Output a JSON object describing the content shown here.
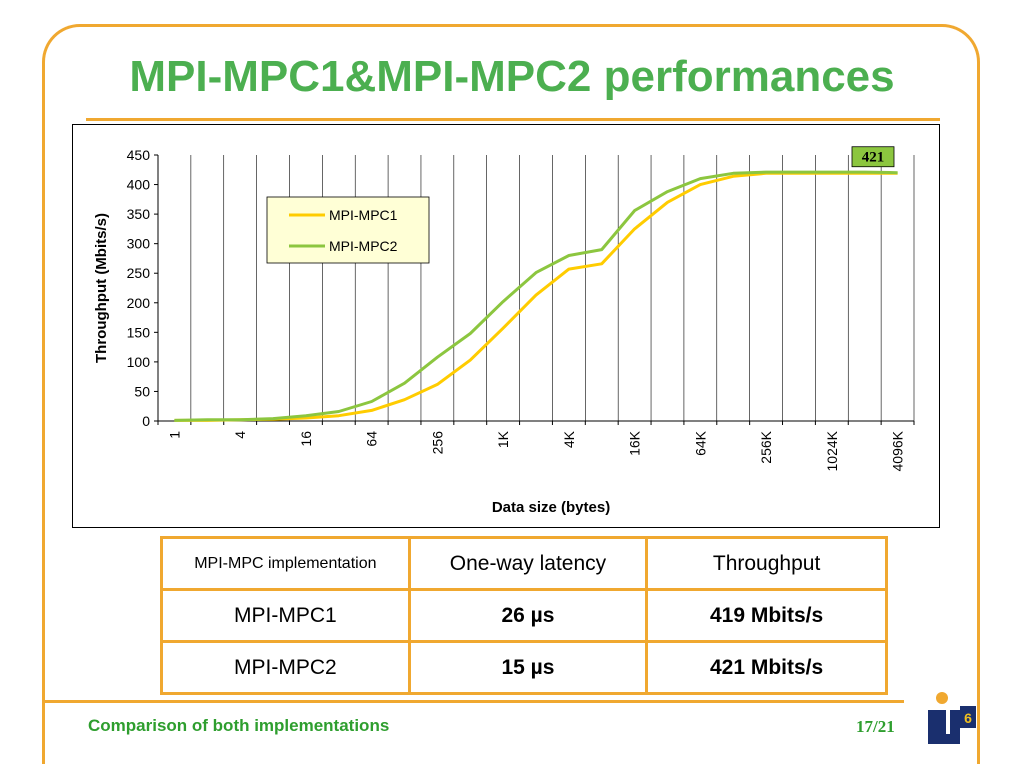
{
  "slide": {
    "title": "MPI-MPC1&MPI-MPC2 performances",
    "footer": "Comparison of both implementations",
    "page": "17/21",
    "logo_text": "LIP6"
  },
  "colors": {
    "accent": "#f0a830",
    "title": "#4caf50",
    "series1": "#ffcc00",
    "series2": "#8cc63f",
    "annotation_bg": "#8cc63f"
  },
  "chart_data": {
    "type": "line",
    "title": "",
    "xlabel": "Data size (bytes)",
    "ylabel": "Throughput (Mbits/s)",
    "ylim": [
      0,
      450
    ],
    "yticks": [
      0,
      50,
      100,
      150,
      200,
      250,
      300,
      350,
      400,
      450
    ],
    "grid": "vertical",
    "legend": "top-left-inside",
    "x_tick_labels": [
      "1",
      "4",
      "16",
      "64",
      "256",
      "1K",
      "4K",
      "16K",
      "64K",
      "256K",
      "1024K",
      "4096K"
    ],
    "x_tick_label_every": 2,
    "num_points": 23,
    "series": [
      {
        "name": "MPI-MPC1",
        "color": "#ffcc00",
        "values": [
          1,
          1,
          2,
          3,
          5,
          9,
          18,
          36,
          62,
          103,
          157,
          213,
          257,
          266,
          325,
          370,
          400,
          414,
          419,
          419,
          419,
          419,
          419
        ]
      },
      {
        "name": "MPI-MPC2",
        "color": "#8cc63f",
        "values": [
          1,
          2,
          2,
          4,
          9,
          16,
          33,
          64,
          108,
          148,
          202,
          251,
          280,
          290,
          356,
          388,
          410,
          419,
          421,
          421,
          421,
          421,
          420
        ]
      }
    ],
    "annotations": [
      {
        "text": "421",
        "series": "MPI-MPC2"
      }
    ]
  },
  "table": {
    "header": [
      "MPI-MPC implementation",
      "One-way latency",
      "Throughput"
    ],
    "rows": [
      [
        "MPI-MPC1",
        "26 µs",
        "419 Mbits/s"
      ],
      [
        "MPI-MPC2",
        "15 µs",
        "421 Mbits/s"
      ]
    ]
  }
}
